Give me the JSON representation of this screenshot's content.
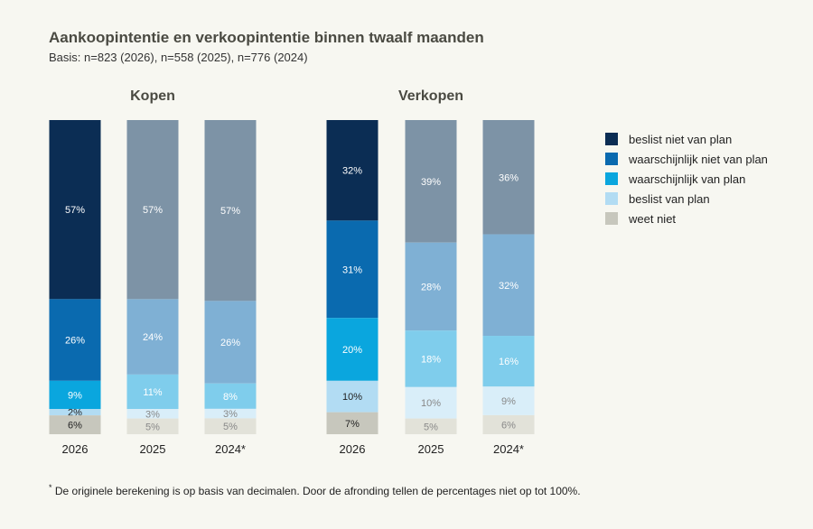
{
  "title": "Aankoopintentie en verkoopintentie binnen twaalf maanden",
  "subtitle": "Basis: n=823 (2026), n=558 (2025), n=776 (2024)",
  "footnote": {
    "mark": "*",
    "text": " De originele berekening is op basis van decimalen. Door de afronding tellen de percentages niet op tot 100%."
  },
  "legend": [
    {
      "label": "beslist niet van plan",
      "color": "#0b2d54"
    },
    {
      "label": "waarschijnlijk niet van plan",
      "color": "#0a6aaf"
    },
    {
      "label": "waarschijnlijk van plan",
      "color": "#0aa6de"
    },
    {
      "label": "beslist van plan",
      "color": "#b2dcf3"
    },
    {
      "label": "weet niet",
      "color": "#c7c7bd"
    }
  ],
  "chart_data": [
    {
      "type": "bar",
      "stacked": true,
      "title": "Kopen",
      "categories": [
        "2026",
        "2025",
        "2024*"
      ],
      "series": [
        {
          "name": "beslist niet van plan",
          "values": [
            57,
            57,
            57
          ]
        },
        {
          "name": "waarschijnlijk niet van plan",
          "values": [
            26,
            24,
            26
          ]
        },
        {
          "name": "waarschijnlijk van plan",
          "values": [
            9,
            11,
            8
          ]
        },
        {
          "name": "beslist van plan",
          "values": [
            2,
            3,
            3
          ]
        },
        {
          "name": "weet niet",
          "values": [
            6,
            5,
            5
          ]
        }
      ],
      "labels": [
        [
          "57%",
          "26%",
          "9%",
          "2%",
          "6%"
        ],
        [
          "57%",
          "24%",
          "11%",
          "3%",
          "5%"
        ],
        [
          "57%",
          "26%",
          "8%",
          "3%",
          "5%"
        ]
      ]
    },
    {
      "type": "bar",
      "stacked": true,
      "title": "Verkopen",
      "categories": [
        "2026",
        "2025",
        "2024*"
      ],
      "series": [
        {
          "name": "beslist niet van plan",
          "values": [
            32,
            39,
            36
          ]
        },
        {
          "name": "waarschijnlijk niet van plan",
          "values": [
            31,
            28,
            32
          ]
        },
        {
          "name": "waarschijnlijk van plan",
          "values": [
            20,
            18,
            16
          ]
        },
        {
          "name": "beslist van plan",
          "values": [
            10,
            10,
            9
          ]
        },
        {
          "name": "weet niet",
          "values": [
            7,
            5,
            6
          ]
        }
      ],
      "labels": [
        [
          "32%",
          "31%",
          "20%",
          "10%",
          "7%"
        ],
        [
          "39%",
          "28%",
          "18%",
          "10%",
          "5%"
        ],
        [
          "36%",
          "32%",
          "16%",
          "9%",
          "6%"
        ]
      ]
    }
  ],
  "colors": {
    "current": [
      "#0b2d54",
      "#0a6aaf",
      "#0aa6de",
      "#b2dcf3",
      "#c7c7bd"
    ],
    "previous": [
      "#7d93a6",
      "#7fb0d4",
      "#7fcdec",
      "#d9eef9",
      "#e2e2d9"
    ],
    "label_dark_bg": "#ffffff",
    "label_light_bg": "#222222",
    "label_faded": "#888888"
  }
}
